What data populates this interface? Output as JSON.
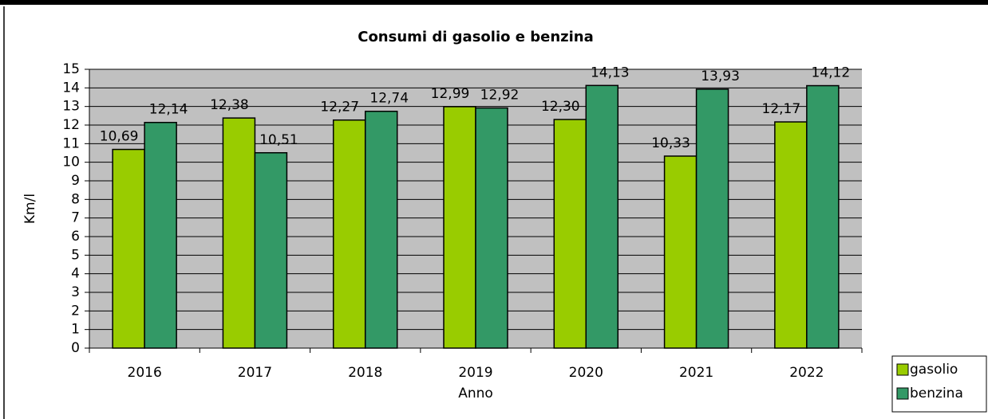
{
  "chart_data": {
    "type": "bar",
    "title": "Consumi di gasolio e benzina",
    "x_label": "Anno",
    "y_label": "Km/l",
    "categories": [
      "2016",
      "2017",
      "2018",
      "2019",
      "2020",
      "2021",
      "2022"
    ],
    "series": [
      {
        "name": "gasolio",
        "color": "#99cc00",
        "values": [
          10.69,
          12.38,
          12.27,
          12.99,
          12.3,
          10.33,
          12.17
        ],
        "value_labels": [
          "10,69",
          "12,38",
          "12,27",
          "12,99",
          "12,30",
          "10,33",
          "12,17"
        ]
      },
      {
        "name": "benzina",
        "color": "#339966",
        "values": [
          12.14,
          10.51,
          12.74,
          12.92,
          14.13,
          13.93,
          14.12
        ],
        "value_labels": [
          "12,14",
          "10,51",
          "12,74",
          "12,92",
          "14,13",
          "13,93",
          "14,12"
        ]
      }
    ],
    "ylim": [
      0,
      15
    ],
    "yticks": [
      0,
      1,
      2,
      3,
      4,
      5,
      6,
      7,
      8,
      9,
      10,
      11,
      12,
      13,
      14,
      15
    ],
    "grid": true,
    "legend": "right"
  }
}
